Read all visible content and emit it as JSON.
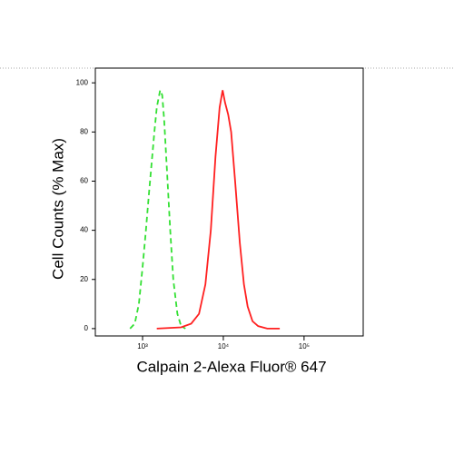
{
  "chart_data": {
    "type": "line",
    "x_scale": "log",
    "x_label": "Calpain 2-Alexa Fluor® 647",
    "y_label": "Cell Counts (% Max)",
    "xlim": [
      260,
      540000
    ],
    "ylim": [
      -3,
      106
    ],
    "xticks": [
      {
        "value": 1000,
        "label": "10³"
      },
      {
        "value": 10000,
        "label": "10⁴"
      },
      {
        "value": 100000,
        "label": "10⁵"
      }
    ],
    "yticks": [
      0,
      20,
      40,
      60,
      80,
      100
    ],
    "series": [
      {
        "color": "#33e033",
        "style": "dashed",
        "x": [
          700,
          800,
          900,
          1000,
          1100,
          1200,
          1300,
          1400,
          1500,
          1650,
          1750,
          1850,
          2000,
          2200,
          2400,
          2700,
          3000,
          3400
        ],
        "values": [
          0,
          2,
          10,
          25,
          40,
          55,
          68,
          80,
          90,
          97,
          95,
          85,
          65,
          40,
          20,
          6,
          1,
          0
        ]
      },
      {
        "color": "#ff2020",
        "style": "solid",
        "x": [
          1500,
          3000,
          4000,
          5000,
          6000,
          7000,
          8000,
          9000,
          9800,
          10500,
          11500,
          12500,
          14000,
          16000,
          18000,
          20000,
          23000,
          27000,
          35000,
          50000
        ],
        "values": [
          0,
          0.5,
          2,
          6,
          18,
          40,
          70,
          90,
          97,
          92,
          87,
          80,
          60,
          35,
          18,
          9,
          3,
          1,
          0,
          0
        ]
      }
    ]
  }
}
